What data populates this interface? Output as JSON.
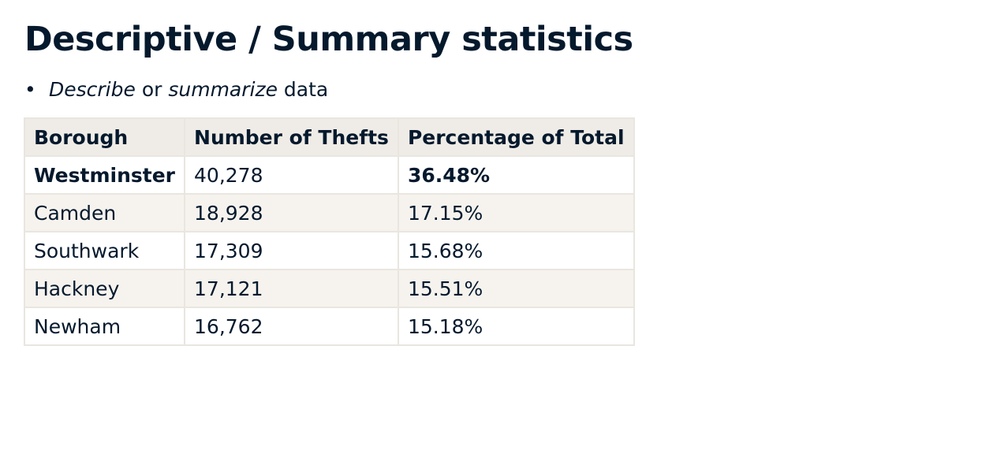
{
  "slide": {
    "title": "Descriptive / Summary statistics",
    "bullet": {
      "marker": "•",
      "part1": "Describe",
      "part2": " or ",
      "part3": "summarize",
      "part4": " data"
    }
  },
  "table": {
    "headers": [
      "Borough",
      "Number of Thefts",
      "Percentage of Total"
    ],
    "rows": [
      [
        "Westminster",
        "40,278",
        "36.48%"
      ],
      [
        "Camden",
        "18,928",
        "17.15%"
      ],
      [
        "Southwark",
        "17,309",
        "15.68%"
      ],
      [
        "Hackney",
        "17,121",
        "15.51%"
      ],
      [
        "Newham",
        "16,762",
        "15.18%"
      ]
    ]
  },
  "colors": {
    "text": "#05192d",
    "header_bg": "#efece7",
    "stripe_bg": "#f6f3ee",
    "border": "#e9e6e0"
  }
}
